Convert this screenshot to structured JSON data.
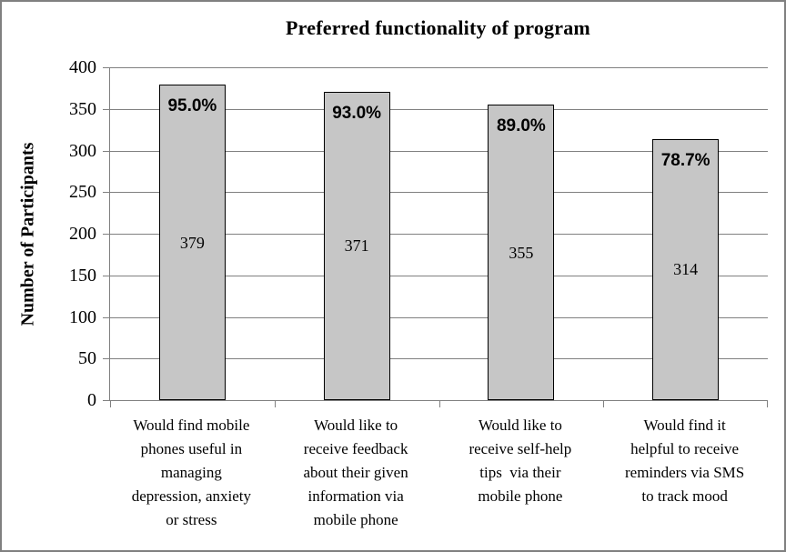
{
  "chart_data": {
    "type": "bar",
    "title": "Preferred functionality of program",
    "ylabel": "Number of Participants",
    "xlabel": "",
    "ylim": [
      0,
      400
    ],
    "yticks": [
      0,
      50,
      100,
      150,
      200,
      250,
      300,
      350,
      400
    ],
    "grid": true,
    "legend_position": "none",
    "categories": [
      "Would find mobile phones useful in managing depression, anxiety or stress",
      "Would like to receive feedback about their given information via mobile phone",
      "Would like to receive self-help tips  via their mobile phone",
      "Would find it helpful to receive reminders via SMS to track mood"
    ],
    "category_lines": [
      [
        "Would find mobile",
        "phones useful in",
        "managing",
        "depression, anxiety",
        "or stress"
      ],
      [
        "Would like to",
        "receive feedback",
        "about their given",
        "information via",
        "mobile phone"
      ],
      [
        "Would like to",
        "receive self-help",
        "tips  via their",
        "mobile phone"
      ],
      [
        "Would find it",
        "helpful to receive",
        "reminders via SMS",
        "to track mood"
      ]
    ],
    "values": [
      379,
      371,
      355,
      314
    ],
    "percent_labels": [
      "95.0%",
      "93.0%",
      "89.0%",
      "78.7%"
    ],
    "colors": {
      "bar_fill": "#c6c6c6",
      "bar_border": "#000000",
      "grid": "#808080",
      "axis": "#808080",
      "frame_border": "#808080",
      "background": "#ffffff",
      "text": "#000000"
    }
  }
}
